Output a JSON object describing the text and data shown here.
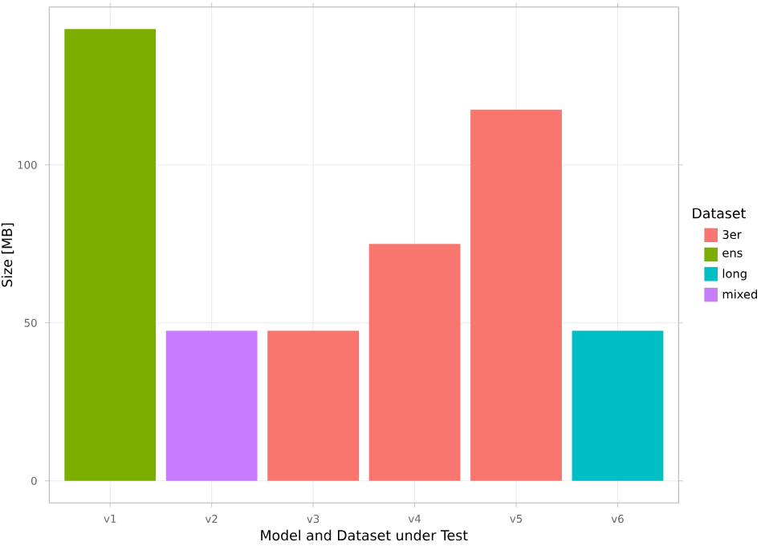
{
  "chart_data": {
    "type": "bar",
    "xlabel": "Model and Dataset under Test",
    "ylabel": "Size [MB]",
    "legend_title": "Dataset",
    "categories": [
      "v1",
      "v2",
      "v3",
      "v4",
      "v5",
      "v6"
    ],
    "series": [
      {
        "name": "3er",
        "color": "#f8766d",
        "values": [
          null,
          null,
          47.5,
          75,
          117.5,
          null
        ]
      },
      {
        "name": "ens",
        "color": "#7cae00",
        "values": [
          143,
          null,
          null,
          null,
          null,
          null
        ]
      },
      {
        "name": "long",
        "color": "#00bfc4",
        "values": [
          null,
          null,
          null,
          null,
          null,
          47.5
        ]
      },
      {
        "name": "mixed",
        "color": "#c77cff",
        "values": [
          null,
          47.5,
          null,
          null,
          null,
          null
        ]
      }
    ],
    "ylim": [
      -7,
      150
    ],
    "yticks": [
      0,
      50,
      100
    ],
    "grid": true,
    "legend": "right"
  }
}
